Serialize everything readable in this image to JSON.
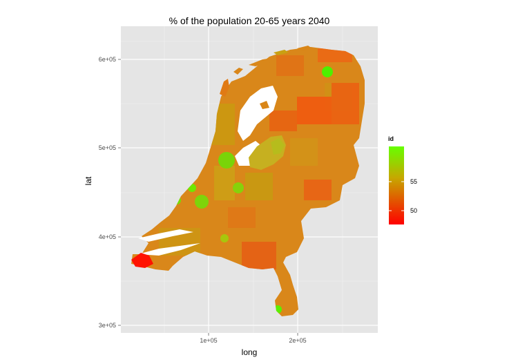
{
  "title": "% of the population 20-65 years 2040",
  "axes": {
    "x": {
      "label": "long",
      "ticks": [
        "1e+05",
        "2e+05"
      ]
    },
    "y": {
      "label": "lat",
      "ticks": [
        "3e+05",
        "4e+05",
        "5e+05",
        "6e+05"
      ]
    }
  },
  "legend": {
    "title": "id",
    "labels": [
      "55",
      "50"
    ],
    "colors": {
      "high": "#66ff00",
      "mid": "#c6a800",
      "low": "#ff0000"
    }
  },
  "colors": {
    "panel_bg": "#e5e5e5",
    "grid": "#ffffff",
    "dominant_region": "#d9871a",
    "secondary_region": "#e86a10"
  }
}
